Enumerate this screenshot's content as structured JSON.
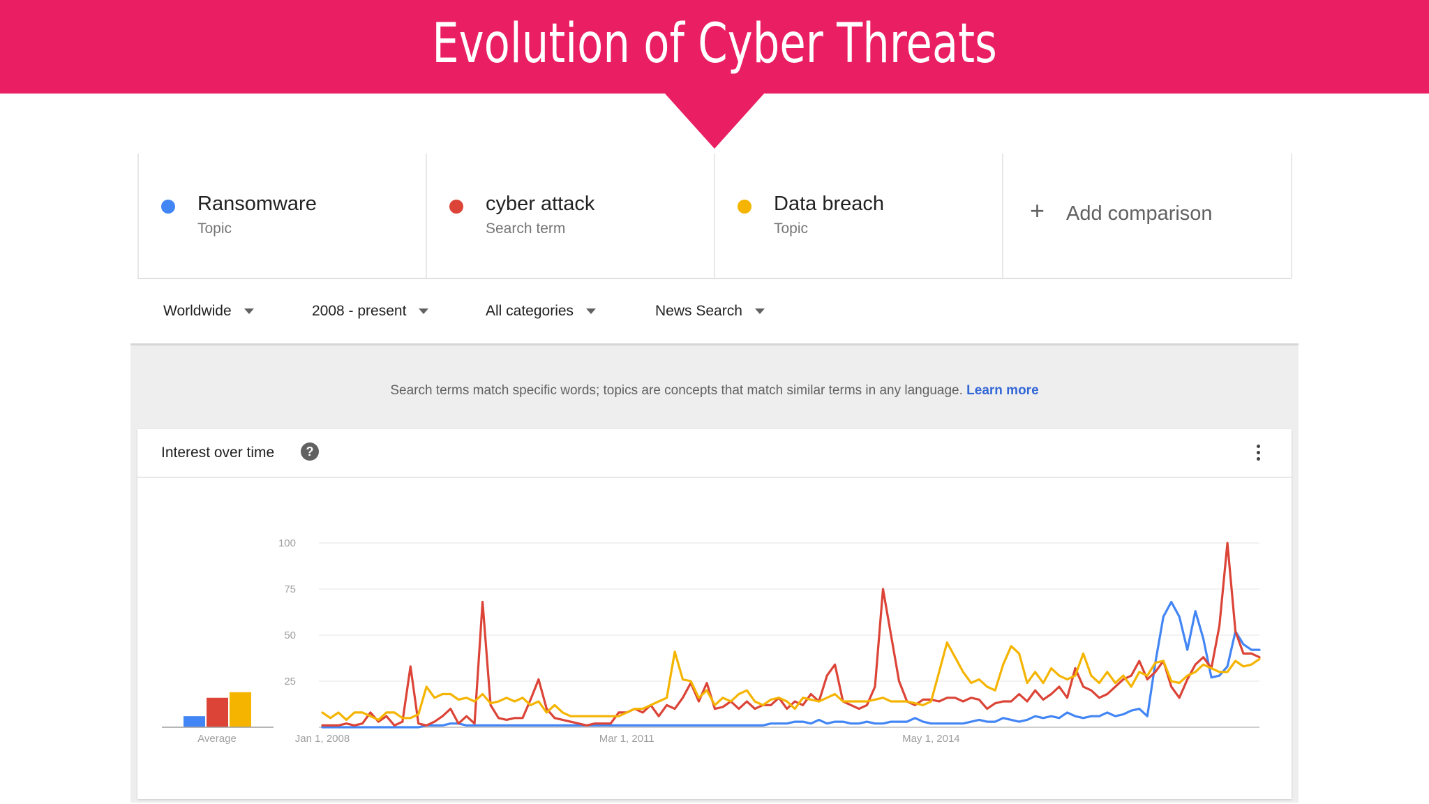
{
  "banner": {
    "title": "Evolution of Cyber Threats",
    "color": "#e91e63"
  },
  "terms": [
    {
      "name": "Ransomware",
      "kind": "Topic",
      "color": "#4285f4"
    },
    {
      "name": "cyber attack",
      "kind": "Search term",
      "color": "#db4437"
    },
    {
      "name": "Data breach",
      "kind": "Topic",
      "color": "#f4b400"
    }
  ],
  "add_comparison": {
    "label": "Add comparison",
    "icon": "plus-icon"
  },
  "filters": {
    "region": "Worldwide",
    "time": "2008 - present",
    "category": "All categories",
    "search_type": "News Search"
  },
  "info": {
    "text": "Search terms match specific words; topics are concepts that match similar terms in any language.",
    "link": "Learn more"
  },
  "card": {
    "title": "Interest over time",
    "help_icon": "question-circle-icon",
    "menu_icon": "kebab-menu-icon"
  },
  "chart_data": {
    "type": "line",
    "x_labels": [
      "Jan 1, 2008",
      "Mar 1, 2011",
      "May 1, 2014"
    ],
    "x_ticks_index": [
      0,
      38,
      76
    ],
    "yticks": [
      25,
      50,
      75,
      100
    ],
    "ylim": [
      0,
      100
    ],
    "average": {
      "label": "Average",
      "values": [
        6,
        16,
        19
      ]
    },
    "series": [
      {
        "color": "#4285f4",
        "values": [
          0,
          0,
          0,
          0,
          0,
          0,
          0,
          0,
          0,
          0,
          0,
          0,
          0,
          1,
          1,
          1,
          2,
          2,
          1,
          1,
          1,
          1,
          1,
          1,
          1,
          1,
          1,
          1,
          1,
          1,
          1,
          1,
          1,
          1,
          1,
          1,
          1,
          1,
          1,
          1,
          1,
          1,
          1,
          1,
          1,
          1,
          1,
          1,
          1,
          1,
          1,
          1,
          1,
          1,
          1,
          1,
          2,
          2,
          2,
          3,
          3,
          2,
          4,
          2,
          3,
          3,
          2,
          2,
          3,
          2,
          2,
          3,
          3,
          3,
          5,
          3,
          2,
          2,
          2,
          2,
          2,
          3,
          4,
          3,
          3,
          5,
          4,
          3,
          4,
          6,
          5,
          6,
          5,
          8,
          6,
          5,
          6,
          6,
          8,
          6,
          7,
          9,
          10,
          6,
          35,
          60,
          68,
          60,
          42,
          63,
          48,
          27,
          28,
          33,
          52,
          45,
          42,
          42
        ]
      },
      {
        "color": "#db4437",
        "values": [
          1,
          1,
          1,
          2,
          1,
          2,
          8,
          3,
          6,
          1,
          3,
          33,
          2,
          1,
          3,
          6,
          10,
          2,
          6,
          2,
          68,
          12,
          5,
          4,
          5,
          5,
          15,
          26,
          10,
          5,
          4,
          3,
          2,
          1,
          2,
          2,
          2,
          8,
          8,
          10,
          8,
          12,
          6,
          12,
          10,
          16,
          24,
          14,
          24,
          10,
          11,
          14,
          10,
          14,
          10,
          12,
          12,
          16,
          10,
          14,
          12,
          18,
          14,
          28,
          34,
          14,
          12,
          10,
          12,
          22,
          75,
          50,
          25,
          14,
          12,
          15,
          15,
          14,
          16,
          16,
          14,
          16,
          15,
          10,
          13,
          14,
          14,
          18,
          14,
          20,
          15,
          18,
          22,
          16,
          32,
          22,
          20,
          16,
          18,
          22,
          26,
          28,
          36,
          26,
          30,
          36,
          22,
          16,
          26,
          34,
          38,
          32,
          55,
          100,
          52,
          40,
          40,
          38
        ]
      },
      {
        "color": "#f4b400",
        "values": [
          8,
          5,
          8,
          4,
          8,
          8,
          6,
          4,
          8,
          8,
          5,
          5,
          7,
          22,
          16,
          18,
          18,
          15,
          16,
          14,
          18,
          13,
          14,
          16,
          14,
          16,
          12,
          14,
          8,
          12,
          8,
          6,
          6,
          6,
          6,
          6,
          6,
          6,
          8,
          10,
          10,
          12,
          14,
          16,
          41,
          26,
          25,
          16,
          20,
          12,
          16,
          14,
          18,
          20,
          14,
          12,
          15,
          16,
          14,
          10,
          16,
          15,
          14,
          16,
          18,
          14,
          14,
          14,
          14,
          15,
          16,
          14,
          14,
          14,
          13,
          12,
          14,
          30,
          46,
          38,
          30,
          24,
          26,
          22,
          20,
          34,
          44,
          40,
          24,
          30,
          24,
          32,
          28,
          26,
          28,
          40,
          28,
          24,
          30,
          24,
          28,
          22,
          30,
          28,
          35,
          36,
          25,
          24,
          28,
          30,
          34,
          32,
          30,
          30,
          36,
          33,
          34,
          37
        ]
      }
    ]
  }
}
